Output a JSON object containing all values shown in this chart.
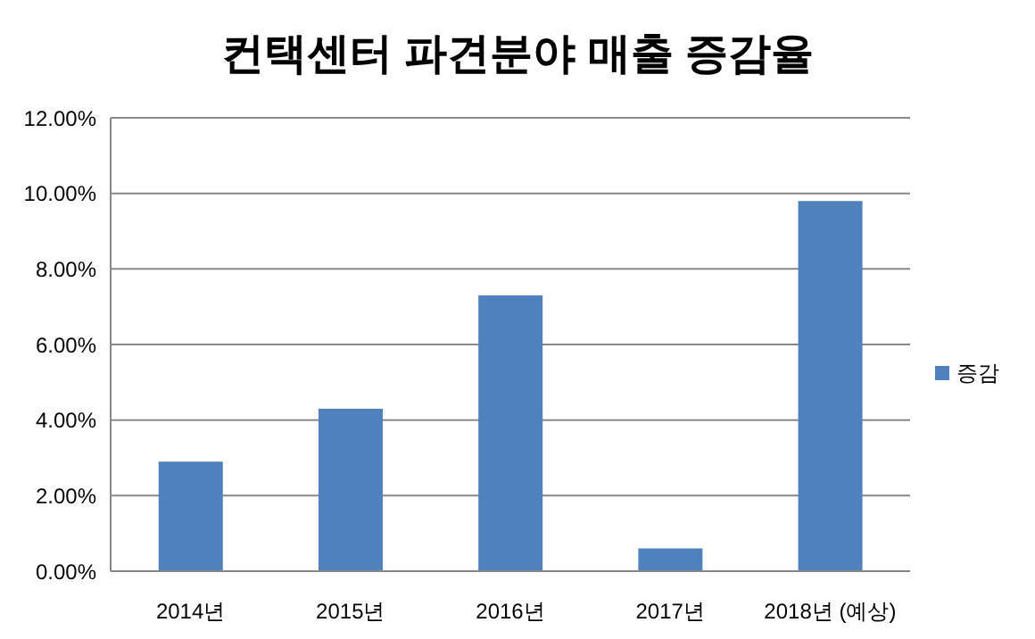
{
  "chart_data": {
    "type": "bar",
    "title": "컨택센터 파견분야 매출 증감율",
    "categories": [
      "2014년",
      "2015년",
      "2016년",
      "2017년",
      "2018년 (예상)"
    ],
    "series": [
      {
        "name": "증감",
        "color": "#4f81bd",
        "values": [
          2.9,
          4.3,
          7.3,
          0.6,
          9.8
        ]
      }
    ],
    "ylim": [
      0,
      12
    ],
    "yticks": [
      {
        "value": 0,
        "label": "0.00%"
      },
      {
        "value": 2,
        "label": "2.00%"
      },
      {
        "value": 4,
        "label": "4.00%"
      },
      {
        "value": 6,
        "label": "6.00%"
      },
      {
        "value": 8,
        "label": "8.00%"
      },
      {
        "value": 10,
        "label": "10.00%"
      },
      {
        "value": 12,
        "label": "12.00%"
      }
    ],
    "grid": "y",
    "legend": "right"
  }
}
